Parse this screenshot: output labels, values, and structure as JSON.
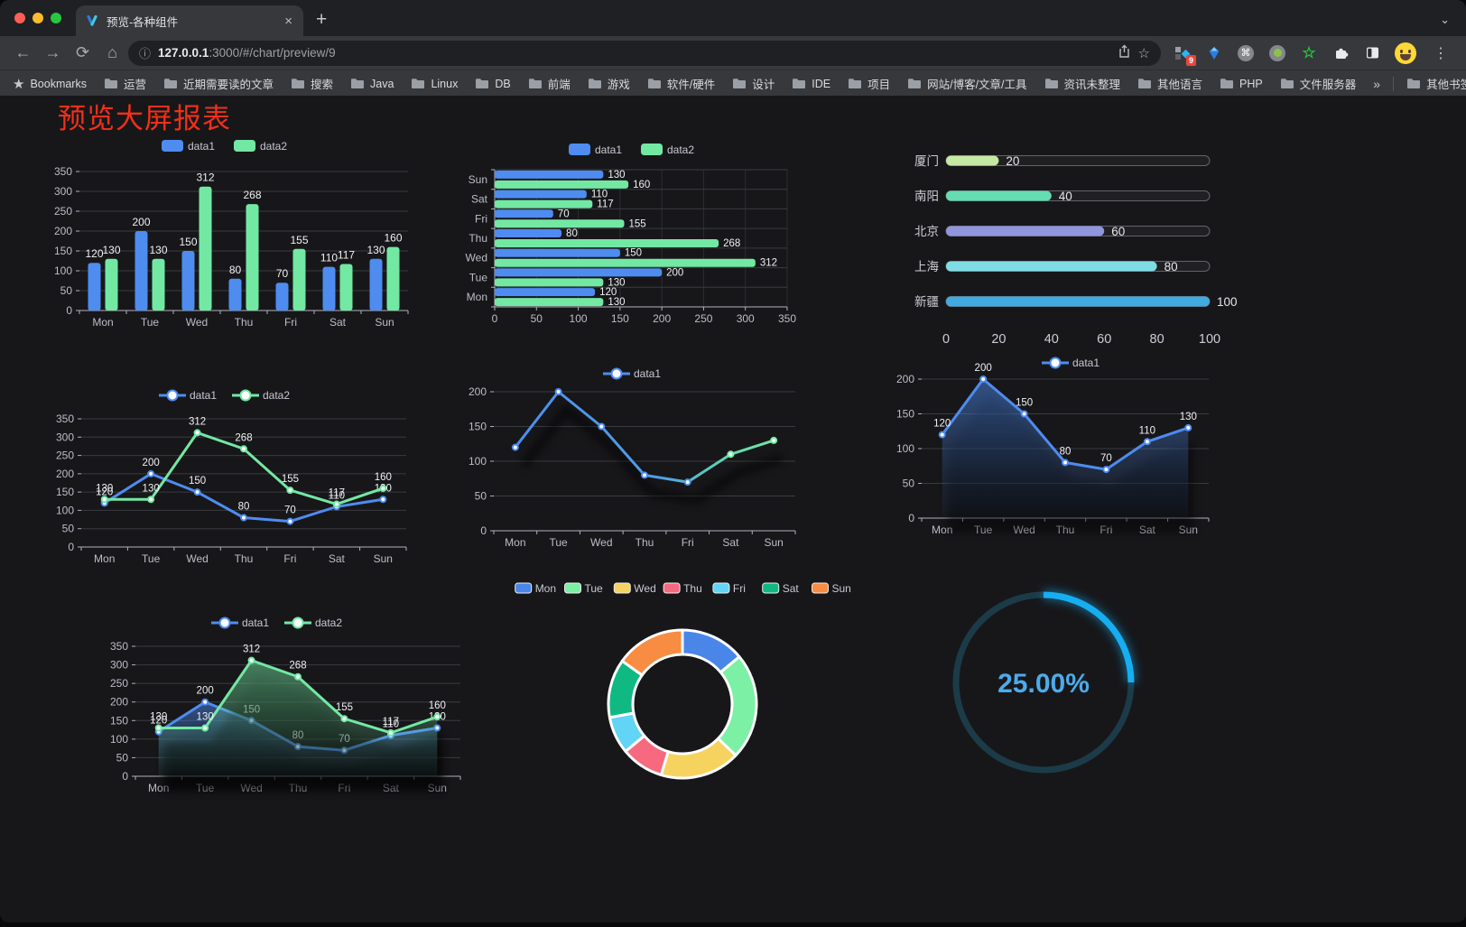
{
  "browser": {
    "traffic_lights": [
      "#ff5f57",
      "#febc2e",
      "#29c73f"
    ],
    "tab_title": "预览-各种组件",
    "tab_close": "×",
    "new_tab": "+",
    "url_host": "127.0.0.1",
    "url_rest": ":3000/#/chart/preview/9",
    "extension_badge": "9",
    "bookmarks_label": "Bookmarks",
    "bookmarks": [
      "运营",
      "近期需要读的文章",
      "搜索",
      "Java",
      "Linux",
      "DB",
      "前端",
      "游戏",
      "软件/硬件",
      "设计",
      "IDE",
      "项目",
      "网站/博客/文章/工具",
      "资讯未整理",
      "其他语言",
      "PHP",
      "文件服务器"
    ],
    "bookmarks_overflow": "»",
    "other_bookmarks": "其他书签"
  },
  "page": {
    "title": "预览大屏报表",
    "title_color": "#f23018",
    "background": "#17171a"
  },
  "chart_data": [
    {
      "id": "bar-vertical",
      "type": "bar",
      "categories": [
        "Mon",
        "Tue",
        "Wed",
        "Thu",
        "Fri",
        "Sat",
        "Sun"
      ],
      "series": [
        {
          "name": "data1",
          "color": "#4e8cf0",
          "values": [
            120,
            200,
            150,
            80,
            70,
            110,
            130
          ]
        },
        {
          "name": "data2",
          "color": "#73e8a3",
          "values": [
            130,
            130,
            312,
            268,
            155,
            117,
            160
          ]
        }
      ],
      "ylim": [
        0,
        350
      ],
      "ytick": 50,
      "legend_position": "top",
      "grid": true,
      "labels": true
    },
    {
      "id": "bar-horizontal",
      "type": "bar-horizontal",
      "categories": [
        "Mon",
        "Tue",
        "Wed",
        "Thu",
        "Fri",
        "Sat",
        "Sun"
      ],
      "display_order_top_to_bottom": [
        "Sun",
        "Sat",
        "Fri",
        "Thu",
        "Wed",
        "Tue",
        "Mon"
      ],
      "series": [
        {
          "name": "data1",
          "color": "#4e8cf0",
          "values": [
            120,
            200,
            150,
            80,
            70,
            110,
            130
          ]
        },
        {
          "name": "data2",
          "color": "#73e8a3",
          "values": [
            130,
            130,
            312,
            268,
            155,
            117,
            160
          ]
        }
      ],
      "xlim": [
        0,
        350
      ],
      "xtick": 50,
      "legend_position": "top",
      "labels": true
    },
    {
      "id": "progress-bars",
      "type": "progress",
      "items": [
        {
          "label": "厦门",
          "value": 20,
          "color": "#c5e8a5"
        },
        {
          "label": "南阳",
          "value": 40,
          "color": "#63ddb1"
        },
        {
          "label": "北京",
          "value": 60,
          "color": "#9095de"
        },
        {
          "label": "上海",
          "value": 80,
          "color": "#7edde4"
        },
        {
          "label": "新疆",
          "value": 100,
          "color": "#41aade"
        }
      ],
      "max": 100,
      "xticks": [
        0,
        20,
        40,
        60,
        80,
        100
      ]
    },
    {
      "id": "line-dual",
      "type": "line",
      "categories": [
        "Mon",
        "Tue",
        "Wed",
        "Thu",
        "Fri",
        "Sat",
        "Sun"
      ],
      "series": [
        {
          "name": "data1",
          "color": "#4e8cf0",
          "values": [
            120,
            200,
            150,
            80,
            70,
            110,
            130
          ]
        },
        {
          "name": "data2",
          "color": "#73e8a3",
          "values": [
            130,
            130,
            312,
            268,
            155,
            117,
            160
          ]
        }
      ],
      "ylim": [
        0,
        350
      ],
      "ytick": 50,
      "labels": true,
      "legend_position": "top"
    },
    {
      "id": "line-gradient",
      "type": "line-gradient",
      "categories": [
        "Mon",
        "Tue",
        "Wed",
        "Thu",
        "Fri",
        "Sat",
        "Sun"
      ],
      "series": [
        {
          "name": "data1",
          "color": [
            [
              "0%",
              "#4e8cf0"
            ],
            [
              "55%",
              "#4e9fe6"
            ],
            [
              "78%",
              "#63d9ad"
            ],
            [
              "100%",
              "#74eda2"
            ]
          ],
          "values": [
            120,
            200,
            150,
            80,
            70,
            110,
            130
          ]
        }
      ],
      "ylim": [
        0,
        200
      ],
      "ytick": 50,
      "labels": false,
      "legend_position": "top"
    },
    {
      "id": "area-single",
      "type": "area",
      "categories": [
        "Mon",
        "Tue",
        "Wed",
        "Thu",
        "Fri",
        "Sat",
        "Sun"
      ],
      "series": [
        {
          "name": "data1",
          "color": "#4e8cf0",
          "values": [
            120,
            200,
            150,
            80,
            70,
            110,
            130
          ]
        }
      ],
      "ylim": [
        0,
        200
      ],
      "ytick": 50,
      "labels": true,
      "legend_position": "top"
    },
    {
      "id": "area-dual",
      "type": "area-dual",
      "categories": [
        "Mon",
        "Tue",
        "Wed",
        "Thu",
        "Fri",
        "Sat",
        "Sun"
      ],
      "series": [
        {
          "name": "data1",
          "color": "#4e8cf0",
          "values": [
            120,
            200,
            150,
            80,
            70,
            110,
            130
          ]
        },
        {
          "name": "data2",
          "color": "#73e8a3",
          "values": [
            130,
            130,
            312,
            268,
            155,
            117,
            160
          ]
        }
      ],
      "ylim": [
        0,
        350
      ],
      "ytick": 50,
      "labels": true,
      "legend_position": "top"
    },
    {
      "id": "donut",
      "type": "donut",
      "items": [
        {
          "label": "Mon",
          "value": 120,
          "color": "#4a86e8"
        },
        {
          "label": "Tue",
          "value": 200,
          "color": "#7cf0a5"
        },
        {
          "label": "Wed",
          "value": 150,
          "color": "#f5d35e"
        },
        {
          "label": "Thu",
          "value": 80,
          "color": "#f7697e"
        },
        {
          "label": "Fri",
          "value": 70,
          "color": "#62d4f5"
        },
        {
          "label": "Sat",
          "value": 110,
          "color": "#10b981"
        },
        {
          "label": "Sun",
          "value": 130,
          "color": "#f78c42"
        }
      ],
      "legend_position": "top"
    },
    {
      "id": "gauge",
      "type": "gauge",
      "value": 25,
      "text": "25.00%",
      "color": "#16aef2",
      "track_color": "#1c3b48",
      "text_color": "#4cabea"
    }
  ]
}
